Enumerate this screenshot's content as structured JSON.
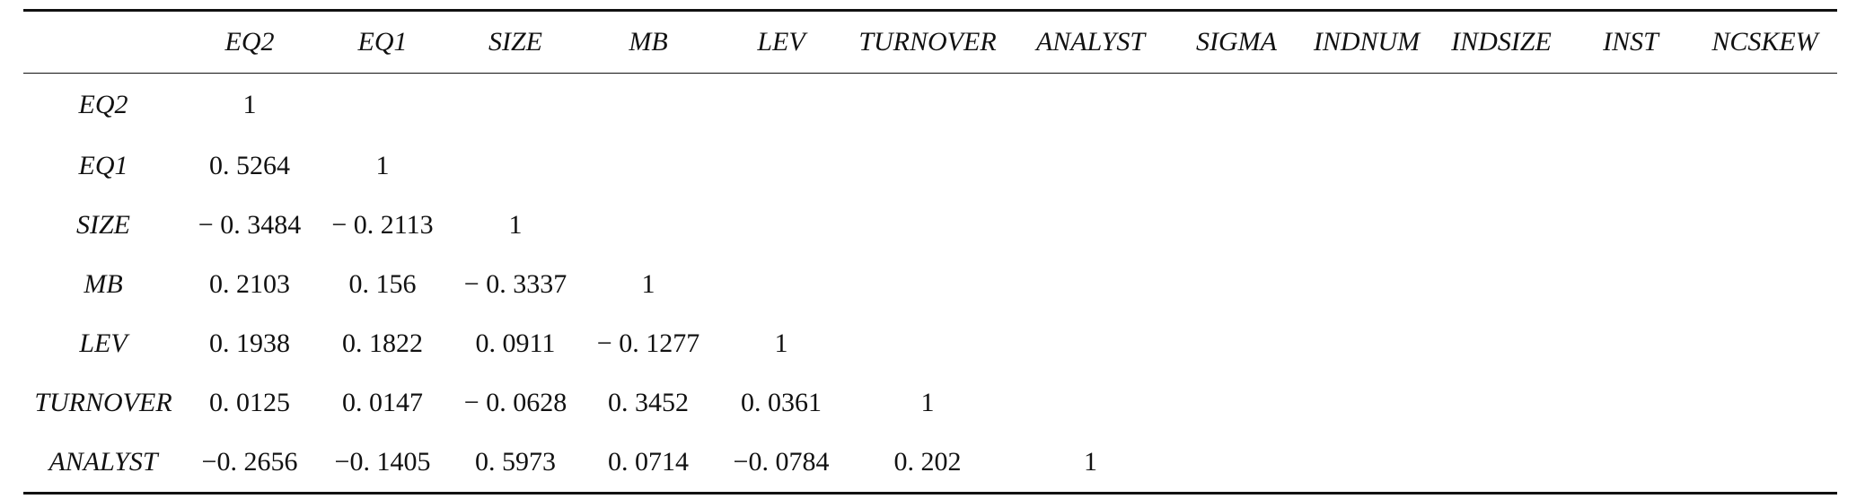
{
  "table": {
    "columns": [
      "",
      "EQ2",
      "EQ1",
      "SIZE",
      "MB",
      "LEV",
      "TURNOVER",
      "ANALYST",
      "SIGMA",
      "INDNUM",
      "INDSIZE",
      "INST",
      "NCSKEW"
    ],
    "rows": [
      {
        "label": "EQ2",
        "cells": [
          "1",
          "",
          "",
          "",
          "",
          "",
          "",
          "",
          "",
          "",
          "",
          ""
        ]
      },
      {
        "label": "EQ1",
        "cells": [
          "0. 5264",
          "1",
          "",
          "",
          "",
          "",
          "",
          "",
          "",
          "",
          "",
          ""
        ]
      },
      {
        "label": "SIZE",
        "cells": [
          "− 0. 3484",
          "− 0. 2113",
          "1",
          "",
          "",
          "",
          "",
          "",
          "",
          "",
          "",
          ""
        ]
      },
      {
        "label": "MB",
        "cells": [
          "0. 2103",
          "0. 156",
          "− 0. 3337",
          "1",
          "",
          "",
          "",
          "",
          "",
          "",
          "",
          ""
        ]
      },
      {
        "label": "LEV",
        "cells": [
          "0. 1938",
          "0. 1822",
          "0. 0911",
          "− 0. 1277",
          "1",
          "",
          "",
          "",
          "",
          "",
          "",
          ""
        ]
      },
      {
        "label": "TURNOVER",
        "cells": [
          "0. 0125",
          "0. 0147",
          "− 0. 0628",
          "0. 3452",
          "0. 0361",
          "1",
          "",
          "",
          "",
          "",
          "",
          ""
        ]
      },
      {
        "label": "ANALYST",
        "cells": [
          "−0. 2656",
          "−0. 1405",
          "0. 5973",
          "0. 0714",
          "−0. 0784",
          "0. 202",
          "1",
          "",
          "",
          "",
          "",
          ""
        ]
      }
    ]
  }
}
